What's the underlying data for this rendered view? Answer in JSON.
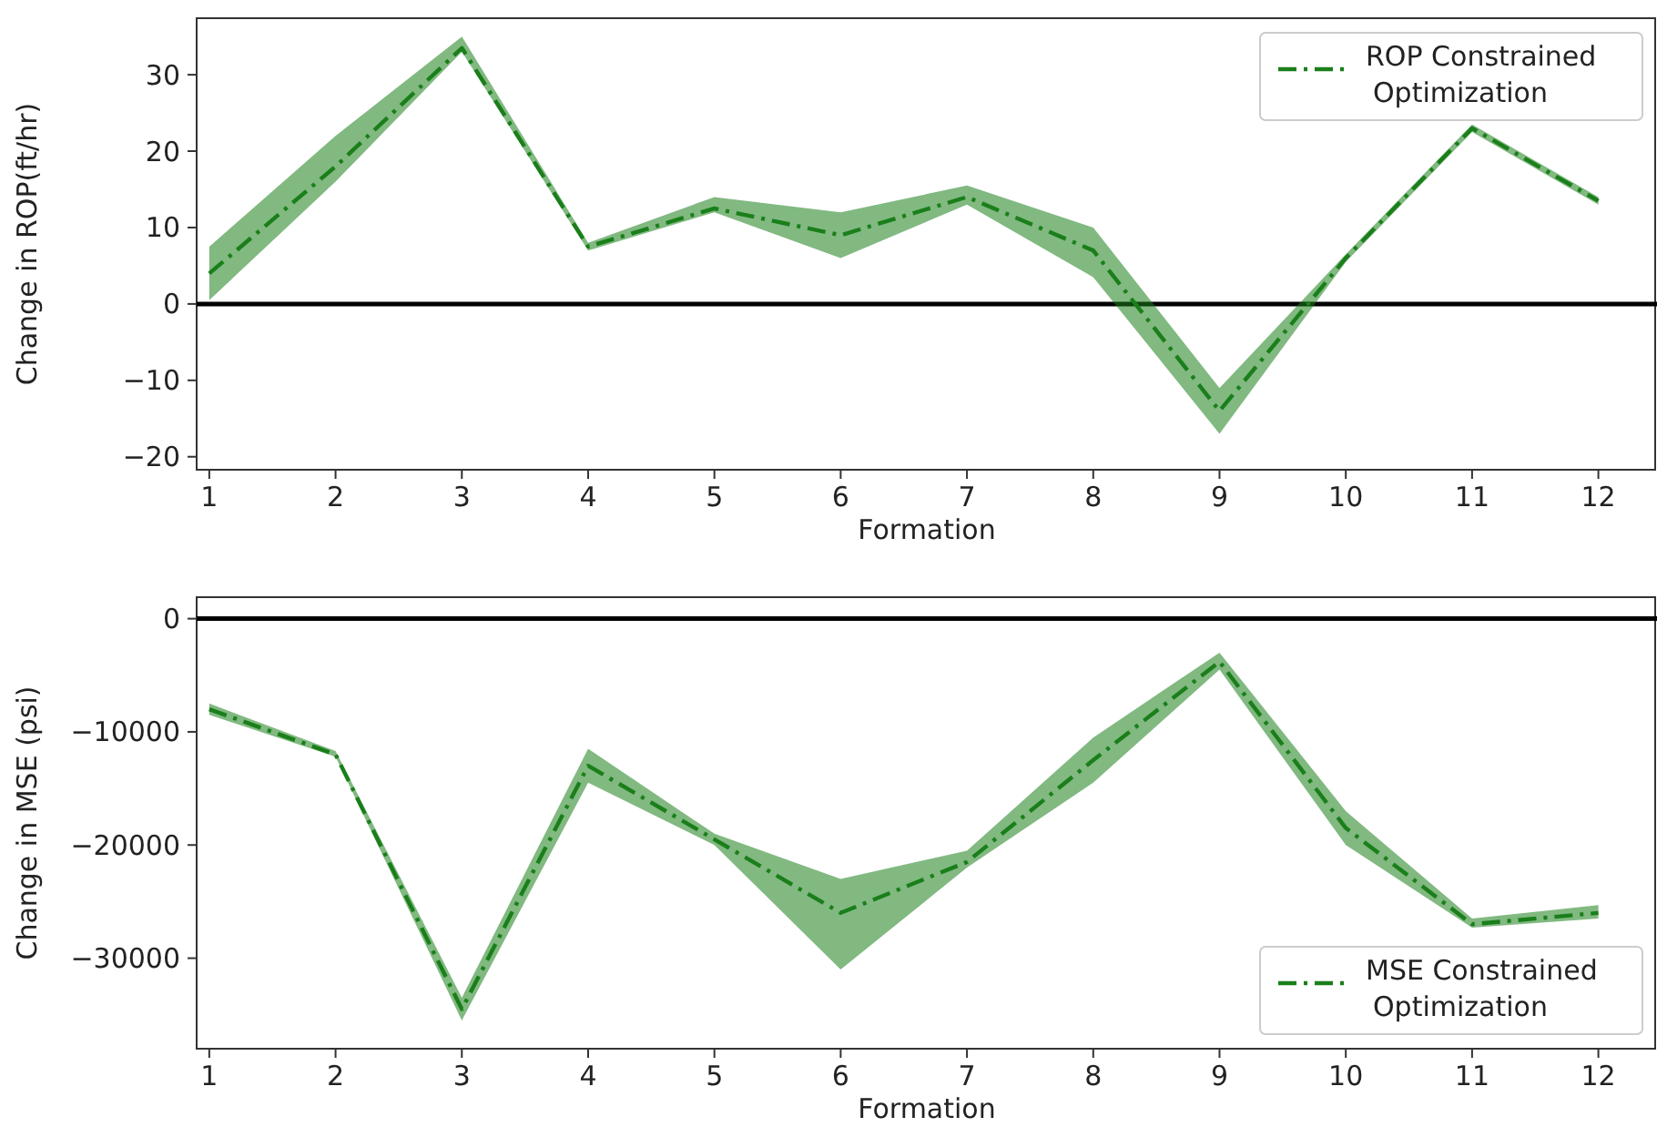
{
  "chart_data": [
    {
      "type": "line",
      "xlabel": "Formation",
      "ylabel": "Change in ROP(ft/hr)",
      "x": [
        1,
        2,
        3,
        4,
        5,
        6,
        7,
        8,
        9,
        10,
        11,
        12
      ],
      "xlim": [
        0.9,
        12.45
      ],
      "xticks": [
        1,
        2,
        3,
        4,
        5,
        6,
        7,
        8,
        9,
        10,
        11,
        12
      ],
      "ylim": [
        -21.7,
        37.4
      ],
      "yticks": [
        -20,
        -10,
        0,
        10,
        20,
        30
      ],
      "legend": "top right",
      "line_style": "dashed",
      "ref_lines": [
        {
          "axis": "y",
          "value": 0,
          "color": "#000000"
        }
      ],
      "series": [
        {
          "name": "ROP Constrained Optimization",
          "color": "#1a7f1a",
          "values": [
            4,
            18,
            33.5,
            7.5,
            12.5,
            9,
            14,
            7,
            -14,
            6,
            23,
            13.5
          ],
          "lower": [
            0.5,
            16,
            33,
            7,
            12,
            6,
            13,
            3.5,
            -17,
            5.5,
            22.5,
            13
          ],
          "upper": [
            7.5,
            22,
            35,
            8,
            14,
            12,
            15.5,
            10,
            -11,
            6.5,
            23.5,
            14
          ]
        }
      ]
    },
    {
      "type": "line",
      "xlabel": "Formation",
      "ylabel": "Change in MSE (psi)",
      "x": [
        1,
        2,
        3,
        4,
        5,
        6,
        7,
        8,
        9,
        10,
        11,
        12
      ],
      "xlim": [
        0.9,
        12.45
      ],
      "xticks": [
        1,
        2,
        3,
        4,
        5,
        6,
        7,
        8,
        9,
        10,
        11,
        12
      ],
      "ylim": [
        -38000,
        1900
      ],
      "yticks": [
        -30000,
        -20000,
        -10000,
        0
      ],
      "legend": "bottom right",
      "line_style": "dashed",
      "ref_lines": [
        {
          "axis": "y",
          "value": 0,
          "color": "#000000"
        }
      ],
      "series": [
        {
          "name": "MSE Constrained Optimization",
          "color": "#1a7f1a",
          "values": [
            -8000,
            -12000,
            -34500,
            -13000,
            -19500,
            -26000,
            -21500,
            -12500,
            -3800,
            -18500,
            -27000,
            -26000
          ],
          "lower": [
            -8500,
            -12200,
            -35500,
            -14500,
            -20000,
            -31000,
            -22000,
            -14500,
            -4500,
            -20000,
            -27300,
            -26500
          ],
          "upper": [
            -7500,
            -11700,
            -33500,
            -11500,
            -19000,
            -23000,
            -20500,
            -10500,
            -3000,
            -17000,
            -26500,
            -25300
          ]
        }
      ]
    }
  ]
}
